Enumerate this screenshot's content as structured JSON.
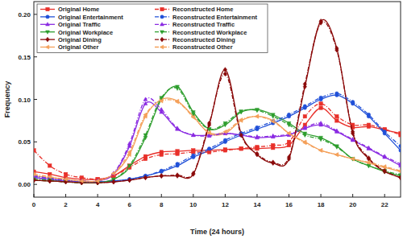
{
  "chart_data": {
    "type": "line",
    "x_label": "Time (24 hours)",
    "y_label": "Frequency",
    "x": [
      0,
      1,
      2,
      3,
      4,
      5,
      6,
      7,
      8,
      9,
      10,
      11,
      12,
      13,
      14,
      15,
      16,
      17,
      18,
      19,
      20,
      21,
      22,
      23
    ],
    "xlim": [
      0,
      23
    ],
    "xticks": [
      0,
      2,
      4,
      6,
      8,
      10,
      12,
      14,
      16,
      18,
      20,
      22
    ],
    "ylim": [
      -0.015,
      0.215
    ],
    "yticks": [
      {
        "value": 0,
        "label": "0.00"
      },
      {
        "value": 0.05,
        "label": "0.05"
      },
      {
        "value": 0.1,
        "label": "0.10"
      },
      {
        "value": 0.15,
        "label": "0.15"
      },
      {
        "value": 0.2,
        "label": "0.20"
      }
    ],
    "grid": false,
    "legend": "upper left",
    "series": [
      {
        "name": "Original Home",
        "color": "#e8302a",
        "marker": "square",
        "line_style": "solid",
        "values": [
          0.015,
          0.012,
          0.008,
          0.006,
          0.006,
          0.01,
          0.022,
          0.033,
          0.038,
          0.039,
          0.04,
          0.04,
          0.041,
          0.042,
          0.042,
          0.043,
          0.046,
          0.07,
          0.09,
          0.075,
          0.067,
          0.068,
          0.064,
          0.06
        ]
      },
      {
        "name": "Original Entertainment",
        "color": "#2050d8",
        "marker": "circle",
        "line_style": "solid",
        "values": [
          0.008,
          0.006,
          0.004,
          0.003,
          0.003,
          0.004,
          0.006,
          0.01,
          0.015,
          0.022,
          0.032,
          0.04,
          0.05,
          0.058,
          0.065,
          0.072,
          0.08,
          0.09,
          0.1,
          0.105,
          0.095,
          0.08,
          0.06,
          0.04
        ]
      },
      {
        "name": "Original Traffic",
        "color": "#8a2be2",
        "marker": "triangle",
        "line_style": "solid",
        "values": [
          0.008,
          0.006,
          0.004,
          0.003,
          0.004,
          0.012,
          0.045,
          0.095,
          0.085,
          0.065,
          0.058,
          0.058,
          0.06,
          0.058,
          0.055,
          0.056,
          0.058,
          0.066,
          0.07,
          0.062,
          0.052,
          0.042,
          0.032,
          0.022
        ]
      },
      {
        "name": "Original Workplace",
        "color": "#2e9e2e",
        "marker": "triangle-down",
        "line_style": "solid",
        "values": [
          0.005,
          0.004,
          0.003,
          0.002,
          0.002,
          0.006,
          0.02,
          0.055,
          0.1,
          0.115,
          0.085,
          0.065,
          0.07,
          0.085,
          0.088,
          0.082,
          0.072,
          0.06,
          0.055,
          0.045,
          0.03,
          0.022,
          0.015,
          0.01
        ]
      },
      {
        "name": "Original Dining",
        "color": "#8b0a0a",
        "marker": "diamond",
        "line_style": "solid",
        "values": [
          0.005,
          0.004,
          0.003,
          0.002,
          0.002,
          0.003,
          0.005,
          0.008,
          0.01,
          0.01,
          0.012,
          0.07,
          0.135,
          0.06,
          0.035,
          0.025,
          0.03,
          0.115,
          0.192,
          0.16,
          0.06,
          0.03,
          0.015,
          0.008
        ]
      },
      {
        "name": "Original Other",
        "color": "#f4a05a",
        "marker": "triangle-left",
        "line_style": "solid",
        "values": [
          0.01,
          0.008,
          0.006,
          0.004,
          0.004,
          0.012,
          0.035,
          0.08,
          0.1,
          0.098,
          0.08,
          0.06,
          0.06,
          0.075,
          0.08,
          0.075,
          0.06,
          0.05,
          0.04,
          0.035,
          0.03,
          0.025,
          0.02,
          0.015
        ]
      },
      {
        "name": "Reconstructed Home",
        "color": "#e8302a",
        "marker": "square",
        "line_style": "dash",
        "values": [
          0.04,
          0.022,
          0.012,
          0.008,
          0.006,
          0.01,
          0.02,
          0.03,
          0.035,
          0.036,
          0.038,
          0.038,
          0.04,
          0.042,
          0.044,
          0.046,
          0.05,
          0.08,
          0.095,
          0.08,
          0.07,
          0.07,
          0.065,
          0.058
        ]
      },
      {
        "name": "Reconstructed Entertainment",
        "color": "#2050d8",
        "marker": "circle",
        "line_style": "dash",
        "values": [
          0.01,
          0.007,
          0.005,
          0.003,
          0.003,
          0.004,
          0.006,
          0.01,
          0.016,
          0.024,
          0.034,
          0.042,
          0.052,
          0.06,
          0.067,
          0.074,
          0.082,
          0.092,
          0.102,
          0.107,
          0.097,
          0.082,
          0.062,
          0.045
        ]
      },
      {
        "name": "Reconstructed Traffic",
        "color": "#8a2be2",
        "marker": "triangle",
        "line_style": "dash",
        "values": [
          0.01,
          0.007,
          0.005,
          0.004,
          0.004,
          0.013,
          0.048,
          0.1,
          0.088,
          0.066,
          0.058,
          0.057,
          0.06,
          0.058,
          0.056,
          0.057,
          0.059,
          0.067,
          0.072,
          0.063,
          0.053,
          0.043,
          0.033,
          0.024
        ]
      },
      {
        "name": "Reconstructed Workplace",
        "color": "#2e9e2e",
        "marker": "triangle-down",
        "line_style": "dash",
        "values": [
          0.006,
          0.005,
          0.003,
          0.002,
          0.002,
          0.006,
          0.022,
          0.058,
          0.102,
          0.113,
          0.083,
          0.065,
          0.072,
          0.086,
          0.087,
          0.08,
          0.07,
          0.058,
          0.053,
          0.044,
          0.03,
          0.022,
          0.016,
          0.011
        ]
      },
      {
        "name": "Reconstructed Dining",
        "color": "#8b0a0a",
        "marker": "diamond",
        "line_style": "dash",
        "values": [
          0.005,
          0.004,
          0.003,
          0.002,
          0.002,
          0.003,
          0.005,
          0.008,
          0.01,
          0.011,
          0.013,
          0.072,
          0.13,
          0.058,
          0.036,
          0.026,
          0.032,
          0.118,
          0.19,
          0.158,
          0.062,
          0.031,
          0.016,
          0.008
        ]
      },
      {
        "name": "Reconstructed Other",
        "color": "#f4a05a",
        "marker": "triangle-left",
        "line_style": "dash",
        "values": [
          0.012,
          0.009,
          0.006,
          0.004,
          0.004,
          0.013,
          0.038,
          0.082,
          0.098,
          0.097,
          0.079,
          0.061,
          0.062,
          0.076,
          0.08,
          0.074,
          0.06,
          0.049,
          0.04,
          0.035,
          0.03,
          0.026,
          0.021,
          0.016
        ]
      }
    ]
  }
}
